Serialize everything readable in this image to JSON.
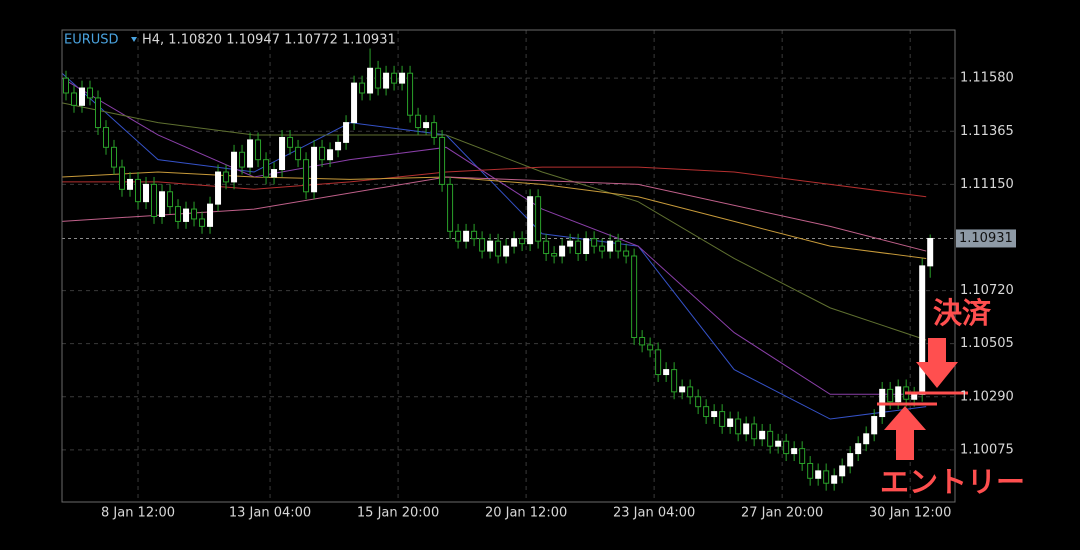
{
  "header": {
    "symbol": "EURUSD",
    "info": "H4, 1.10820 1.10947 1.10772 1.10931"
  },
  "chart_data": {
    "type": "candlestick",
    "open": [
      1.1158,
      1.1152,
      1.1147,
      1.1154,
      1.115,
      1.1138,
      1.113,
      1.1122,
      1.1113,
      1.1117,
      1.1108,
      1.1115,
      1.1102,
      1.1112,
      1.1106,
      1.11,
      1.1105,
      1.1101,
      1.1098,
      1.1107,
      1.112,
      1.1116,
      1.1128,
      1.1122,
      1.1133,
      1.1125,
      1.1118,
      1.1121,
      1.1134,
      1.113,
      1.1125,
      1.1112,
      1.113,
      1.1125,
      1.1129,
      1.1132,
      1.114,
      1.1156,
      1.1152,
      1.1162,
      1.1154,
      1.116,
      1.1156,
      1.116,
      1.1143,
      1.1138,
      1.114,
      1.1134,
      1.1115,
      1.1096,
      1.1092,
      1.1096,
      1.1093,
      1.1088,
      1.1092,
      1.1086,
      1.109,
      1.1093,
      1.1091,
      1.111,
      1.1092,
      1.1087,
      1.1086,
      1.109,
      1.1092,
      1.1087,
      1.1093,
      1.109,
      1.1088,
      1.1092,
      1.1088,
      1.1086,
      1.1053,
      1.105,
      1.1048,
      1.1038,
      1.104,
      1.1031,
      1.1033,
      1.1029,
      1.1025,
      1.1021,
      1.1023,
      1.1017,
      1.102,
      1.1014,
      1.1018,
      1.1012,
      1.1015,
      1.1009,
      1.1011,
      1.1006,
      1.1008,
      1.1002,
      1.0996,
      1.0999,
      1.0994,
      1.0997,
      1.1001,
      1.1006,
      1.101,
      1.1014,
      1.1021,
      1.1032,
      1.1027,
      1.1033,
      1.1028,
      1.103,
      1.1082
    ],
    "high": [
      1.1161,
      1.1155,
      1.1157,
      1.1157,
      1.1153,
      1.1141,
      1.1133,
      1.1125,
      1.112,
      1.112,
      1.1118,
      1.1118,
      1.1115,
      1.1115,
      1.1109,
      1.1108,
      1.1108,
      1.1104,
      1.111,
      1.1123,
      1.1123,
      1.1131,
      1.1131,
      1.1136,
      1.1136,
      1.1128,
      1.1124,
      1.1137,
      1.1137,
      1.1133,
      1.1128,
      1.1133,
      1.1133,
      1.1132,
      1.1135,
      1.1143,
      1.1159,
      1.1159,
      1.117,
      1.1165,
      1.1163,
      1.1163,
      1.1163,
      1.1163,
      1.1146,
      1.1143,
      1.1143,
      1.1137,
      1.1118,
      1.1099,
      1.1099,
      1.1099,
      1.1096,
      1.1095,
      1.1095,
      1.1093,
      1.1096,
      1.1096,
      1.1113,
      1.1113,
      1.1095,
      1.109,
      1.1093,
      1.1095,
      1.1095,
      1.1096,
      1.1096,
      1.1093,
      1.1095,
      1.1095,
      1.1091,
      1.1089,
      1.1056,
      1.1053,
      1.1051,
      1.1043,
      1.1043,
      1.1036,
      1.1036,
      1.1032,
      1.1028,
      1.1026,
      1.1026,
      1.1023,
      1.1023,
      1.1021,
      1.1021,
      1.1018,
      1.1018,
      1.1014,
      1.1014,
      1.1011,
      1.1011,
      1.1005,
      1.1002,
      1.1002,
      1.1,
      1.1004,
      1.1009,
      1.1013,
      1.1017,
      1.1024,
      1.1035,
      1.1035,
      1.1036,
      1.1036,
      1.1033,
      1.1085,
      1.10947
    ],
    "low": [
      1.1149,
      1.1144,
      1.1144,
      1.1147,
      1.1135,
      1.1127,
      1.1119,
      1.111,
      1.111,
      1.1105,
      1.1105,
      1.1099,
      1.1099,
      1.1103,
      1.1097,
      1.1097,
      1.1098,
      1.1095,
      1.1095,
      1.1104,
      1.1113,
      1.1113,
      1.1119,
      1.1119,
      1.1122,
      1.1115,
      1.1115,
      1.1118,
      1.1127,
      1.1122,
      1.1109,
      1.1109,
      1.1122,
      1.1122,
      1.1126,
      1.1129,
      1.1137,
      1.1149,
      1.1149,
      1.1151,
      1.1151,
      1.1153,
      1.1153,
      1.114,
      1.1135,
      1.1135,
      1.1131,
      1.1112,
      1.1093,
      1.1089,
      1.1089,
      1.109,
      1.1085,
      1.1085,
      1.1083,
      1.1083,
      1.1087,
      1.1088,
      1.1088,
      1.1089,
      1.1084,
      1.1083,
      1.1083,
      1.1087,
      1.1084,
      1.1084,
      1.1087,
      1.1085,
      1.1085,
      1.1085,
      1.1083,
      1.105,
      1.1047,
      1.1045,
      1.1035,
      1.1035,
      1.1028,
      1.1028,
      1.1026,
      1.1022,
      1.1018,
      1.1018,
      1.1014,
      1.1014,
      1.1011,
      1.1011,
      1.1009,
      1.1009,
      1.1006,
      1.1006,
      1.1003,
      1.1003,
      1.0999,
      1.0993,
      1.0993,
      1.0991,
      1.0991,
      1.0994,
      1.0998,
      1.1003,
      1.1007,
      1.1011,
      1.1018,
      1.1024,
      1.1024,
      1.1025,
      1.1025,
      1.1027,
      1.10772
    ],
    "close": [
      1.1152,
      1.1147,
      1.1154,
      1.115,
      1.1138,
      1.113,
      1.1122,
      1.1113,
      1.1117,
      1.1108,
      1.1115,
      1.1102,
      1.1112,
      1.1106,
      1.11,
      1.1105,
      1.1101,
      1.1098,
      1.1107,
      1.112,
      1.1116,
      1.1128,
      1.1122,
      1.1133,
      1.1125,
      1.1118,
      1.1121,
      1.1134,
      1.113,
      1.1125,
      1.1112,
      1.113,
      1.1125,
      1.1129,
      1.1132,
      1.114,
      1.1156,
      1.1152,
      1.1162,
      1.1154,
      1.116,
      1.1156,
      1.116,
      1.1143,
      1.1138,
      1.114,
      1.1134,
      1.1115,
      1.1096,
      1.1092,
      1.1096,
      1.1093,
      1.1088,
      1.1092,
      1.1086,
      1.109,
      1.1093,
      1.1091,
      1.111,
      1.1092,
      1.1087,
      1.1086,
      1.109,
      1.1092,
      1.1087,
      1.1093,
      1.109,
      1.1088,
      1.1092,
      1.1088,
      1.1086,
      1.1053,
      1.105,
      1.1048,
      1.1038,
      1.104,
      1.1031,
      1.1033,
      1.1029,
      1.1025,
      1.1021,
      1.1023,
      1.1017,
      1.102,
      1.1014,
      1.1018,
      1.1012,
      1.1015,
      1.1009,
      1.1011,
      1.1006,
      1.1008,
      1.1002,
      1.0996,
      1.0999,
      1.0994,
      1.0997,
      1.1001,
      1.1006,
      1.101,
      1.1014,
      1.1021,
      1.1032,
      1.1027,
      1.1033,
      1.1028,
      1.103,
      1.1082,
      1.10931
    ],
    "up_color": "#ffffff",
    "down_color": "#000000",
    "wick_color": "#2aa12a",
    "xlim": [
      0,
      111.6
    ],
    "ylim": [
      1.09864,
      1.11775
    ],
    "xticks": [
      {
        "value": 9.5,
        "label": "8 Jan 12:00"
      },
      {
        "value": 26,
        "label": "13 Jan 04:00"
      },
      {
        "value": 42,
        "label": "15 Jan 20:00"
      },
      {
        "value": 58,
        "label": "20 Jan 12:00"
      },
      {
        "value": 74,
        "label": "23 Jan 04:00"
      },
      {
        "value": 90,
        "label": "27 Jan 20:00"
      },
      {
        "value": 106,
        "label": "30 Jan 12:00"
      }
    ],
    "yticks": [
      {
        "value": 1.1158,
        "label": "1.11580"
      },
      {
        "value": 1.11365,
        "label": "1.11365"
      },
      {
        "value": 1.1115,
        "label": "1.11150"
      },
      {
        "value": 1.1072,
        "label": "1.10720"
      },
      {
        "value": 1.10505,
        "label": "1.10505"
      },
      {
        "value": 1.1029,
        "label": "1.10290"
      },
      {
        "value": 1.10075,
        "label": "1.10075"
      }
    ],
    "grid": true,
    "current_price": 1.10931,
    "lines": [
      {
        "color": "#3552c8",
        "x": [
          0,
          12,
          24,
          36,
          48,
          60,
          72,
          84,
          96,
          108
        ],
        "values": [
          1.116,
          1.1125,
          1.112,
          1.114,
          1.1135,
          1.1095,
          1.109,
          1.104,
          1.102,
          1.1025
        ]
      },
      {
        "color": "#8a3fa8",
        "x": [
          0,
          12,
          24,
          36,
          48,
          60,
          72,
          84,
          96,
          108
        ],
        "values": [
          1.1158,
          1.1135,
          1.1118,
          1.1125,
          1.113,
          1.1105,
          1.109,
          1.1055,
          1.103,
          1.103
        ]
      },
      {
        "color": "#5f7030",
        "x": [
          0,
          12,
          24,
          36,
          48,
          60,
          72,
          84,
          96,
          108
        ],
        "values": [
          1.1148,
          1.114,
          1.1135,
          1.1135,
          1.1135,
          1.112,
          1.1108,
          1.1085,
          1.1065,
          1.1052
        ]
      },
      {
        "color": "#b53030",
        "x": [
          0,
          12,
          24,
          36,
          48,
          60,
          72,
          84,
          96,
          108
        ],
        "values": [
          1.1116,
          1.1116,
          1.1113,
          1.1116,
          1.112,
          1.1122,
          1.1122,
          1.112,
          1.1115,
          1.111
        ]
      },
      {
        "color": "#c79a3a",
        "x": [
          0,
          12,
          24,
          36,
          48,
          60,
          72,
          84,
          96,
          108
        ],
        "values": [
          1.1118,
          1.112,
          1.1118,
          1.1117,
          1.1118,
          1.1115,
          1.111,
          1.11,
          1.109,
          1.1085
        ]
      },
      {
        "color": "#c0608a",
        "x": [
          0,
          24,
          48,
          72,
          96,
          108
        ],
        "values": [
          1.11,
          1.1105,
          1.1118,
          1.1115,
          1.1098,
          1.1088
        ]
      }
    ],
    "annotations": [
      "決済",
      "エントリー"
    ]
  }
}
